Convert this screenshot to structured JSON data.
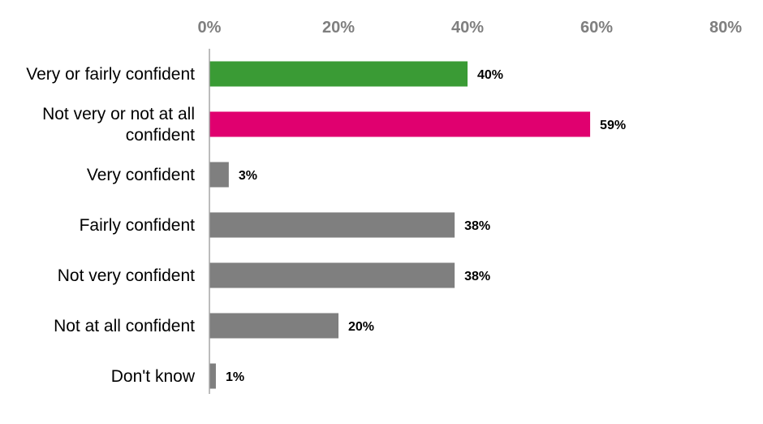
{
  "chart_data": {
    "type": "bar",
    "orientation": "horizontal",
    "title": "",
    "xlabel": "",
    "ylabel": "",
    "xlim": [
      0,
      80
    ],
    "ticks": [
      0,
      20,
      40,
      60,
      80
    ],
    "tick_labels": [
      "0%",
      "20%",
      "40%",
      "60%",
      "80%"
    ],
    "axis_position": "top",
    "grid": false,
    "legend": "none",
    "categories": [
      [
        "Very or fairly confident"
      ],
      [
        "Not very or not at all",
        "confident"
      ],
      [
        "Very confident"
      ],
      [
        "Fairly confident"
      ],
      [
        "Not very confident"
      ],
      [
        "Not at all confident"
      ],
      [
        "Don't know"
      ]
    ],
    "values": [
      40,
      59,
      3,
      38,
      38,
      20,
      1
    ],
    "value_labels": [
      "40%",
      "59%",
      "3%",
      "38%",
      "38%",
      "20%",
      "1%"
    ],
    "colors": [
      "#3a9b35",
      "#e0006f",
      "#7f7f7f",
      "#7f7f7f",
      "#7f7f7f",
      "#7f7f7f",
      "#7f7f7f"
    ],
    "axis_color": "#a6a6a6"
  }
}
